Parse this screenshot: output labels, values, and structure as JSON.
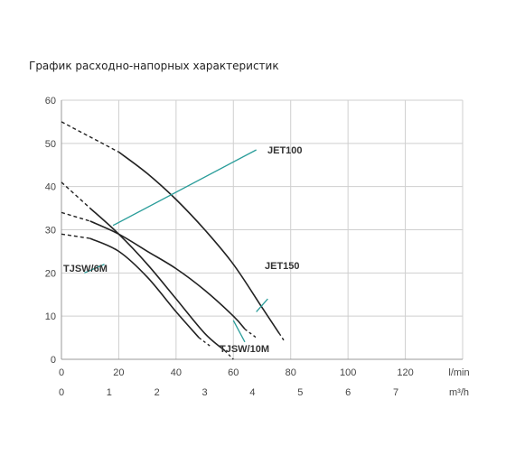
{
  "chart_data": {
    "type": "line",
    "title": "График расходно-напорных характеристик",
    "x_unit_primary": "l/min",
    "x_unit_secondary": "m³/h",
    "xlim": [
      0,
      140
    ],
    "ylim": [
      0,
      60
    ],
    "x_ticks_primary": [
      "0",
      "20",
      "40",
      "60",
      "80",
      "100",
      "120"
    ],
    "x_ticks_secondary": [
      "0",
      "1",
      "2",
      "3",
      "4",
      "5",
      "6",
      "7"
    ],
    "y_ticks": [
      "0",
      "10",
      "20",
      "30",
      "40",
      "50",
      "60"
    ],
    "grid": true,
    "series": [
      {
        "name": "JET100",
        "x": [
          0,
          10,
          20,
          30,
          40,
          50,
          57
        ],
        "y": [
          41,
          35,
          29,
          22,
          14,
          6,
          2
        ],
        "x_ext": [
          57,
          60
        ],
        "y_ext": [
          2,
          0
        ]
      },
      {
        "name": "JET150",
        "x": [
          0,
          20,
          30,
          40,
          50,
          60,
          70,
          76
        ],
        "y": [
          55,
          48,
          43,
          37,
          30,
          22,
          12,
          6
        ],
        "x_ext": [
          76,
          78
        ],
        "y_ext": [
          6,
          4
        ]
      },
      {
        "name": "TJSW/6M",
        "x": [
          0,
          10,
          20,
          30,
          40,
          48
        ],
        "y": [
          29,
          28,
          25,
          19,
          11,
          5
        ],
        "x_ext": [
          48,
          52
        ],
        "y_ext": [
          5,
          3
        ]
      },
      {
        "name": "TJSW/10M",
        "x": [
          0,
          10,
          20,
          30,
          40,
          50,
          60,
          64
        ],
        "y": [
          34,
          32,
          29,
          25,
          21,
          16,
          10,
          7
        ],
        "x_ext": [
          64,
          68
        ],
        "y_ext": [
          7,
          5
        ]
      }
    ],
    "labels": [
      {
        "text": "JET100",
        "leader_from": [
          18,
          31
        ],
        "leader_to": [
          68,
          48.5
        ]
      },
      {
        "text": "JET150",
        "leader_from": [
          68,
          11
        ],
        "leader_to": [
          72,
          14
        ]
      },
      {
        "text": "TJSW/6M",
        "leader_from": [
          15,
          22
        ],
        "leader_to": [
          8,
          20
        ]
      },
      {
        "text": "TJSW/10M",
        "leader_from": [
          64,
          4
        ],
        "leader_to": [
          60,
          9
        ]
      }
    ]
  }
}
